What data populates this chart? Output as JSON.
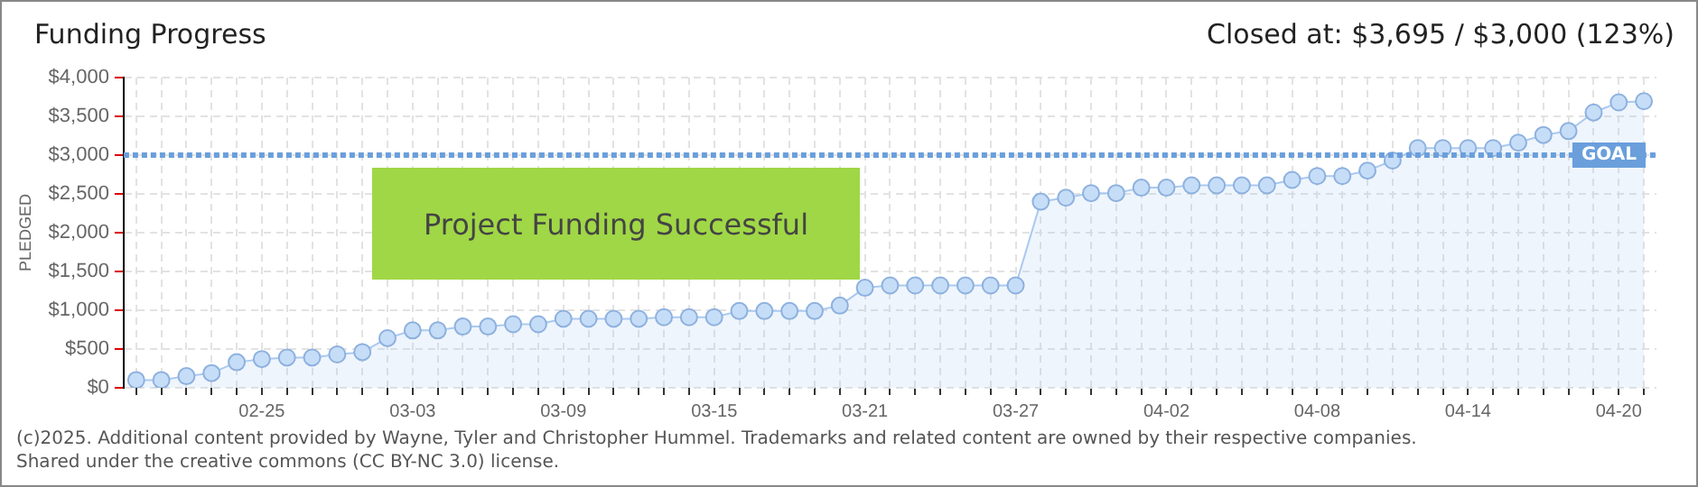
{
  "chart_data": {
    "type": "area",
    "title": "Funding Progress",
    "ylabel": "PLEDGED",
    "categories": [
      null,
      null,
      null,
      null,
      null,
      "02-25",
      null,
      null,
      null,
      null,
      null,
      "03-03",
      null,
      null,
      null,
      null,
      null,
      "03-09",
      null,
      null,
      null,
      null,
      null,
      "03-15",
      null,
      null,
      null,
      null,
      null,
      "03-21",
      null,
      null,
      null,
      null,
      null,
      "03-27",
      null,
      null,
      null,
      null,
      null,
      "04-02",
      null,
      null,
      null,
      null,
      null,
      "04-08",
      null,
      null,
      null,
      null,
      null,
      "04-14",
      null,
      null,
      null,
      null,
      null,
      "04-20",
      null
    ],
    "series": [
      {
        "color": "#a9c9f0",
        "values": [
          100,
          100,
          150,
          190,
          330,
          370,
          390,
          390,
          430,
          460,
          640,
          740,
          740,
          790,
          790,
          820,
          820,
          890,
          890,
          890,
          890,
          910,
          910,
          910,
          990,
          990,
          990,
          990,
          1060,
          1290,
          1320,
          1320,
          1320,
          1320,
          1320,
          1320,
          2400,
          2450,
          2510,
          2510,
          2580,
          2580,
          2610,
          2610,
          2610,
          2610,
          2680,
          2730,
          2730,
          2800,
          2930,
          3090,
          3090,
          3090,
          3090,
          3160,
          3260,
          3310,
          3550,
          3680,
          3695
        ]
      }
    ],
    "ylim": [
      0,
      4000
    ],
    "yticks": [
      {
        "value": 0,
        "label": "$0"
      },
      {
        "value": 500,
        "label": "$500"
      },
      {
        "value": 1000,
        "label": "$1,000"
      },
      {
        "value": 1500,
        "label": "$1,500"
      },
      {
        "value": 2000,
        "label": "$2,000"
      },
      {
        "value": 2500,
        "label": "$2,500"
      },
      {
        "value": 3000,
        "label": "$3,000"
      },
      {
        "value": 3500,
        "label": "$3,500"
      },
      {
        "value": 4000,
        "label": "$4,000"
      }
    ],
    "ref_lines": [
      {
        "axis": "y",
        "value": 3000,
        "label": "GOAL",
        "color": "#6a9fdc",
        "line_style": "dotted"
      }
    ],
    "annotations": [
      "Closed at: $3,695 / $3,000 (123%)",
      "Project Funding Successful",
      "(c)2025. Additional content provided by Wayne, Tyler and Christopher Hummel. Trademarks and related content are owned by their respective companies.",
      "Shared under the creative commons (CC BY-NC 3.0) license."
    ],
    "grid": true,
    "legend": false,
    "marker": "circle",
    "line_style": "solid"
  }
}
